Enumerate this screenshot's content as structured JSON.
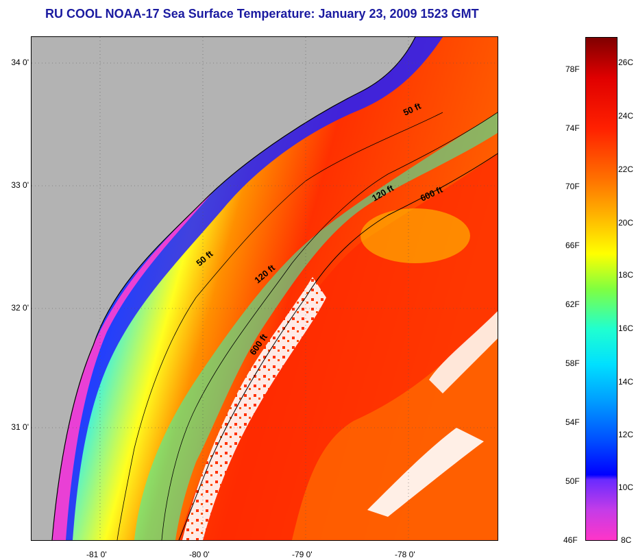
{
  "title": "RU COOL  NOAA-17  Sea Surface Temperature:  January 23, 2009 1523 GMT",
  "map": {
    "lat_ticks": [
      "34 0'",
      "33 0'",
      "32 0'",
      "31 0'"
    ],
    "lon_ticks": [
      "-81 0'",
      "-80 0'",
      "-79 0'",
      "-78 0'"
    ],
    "contour_labels": [
      "50 ft",
      "120 ft",
      "600 ft",
      "50 ft",
      "120 ft",
      "600 ft"
    ]
  },
  "colorbar": {
    "fahrenheit": [
      "78F",
      "74F",
      "70F",
      "66F",
      "62F",
      "58F",
      "54F",
      "50F",
      "46F"
    ],
    "celsius": [
      "26C",
      "24C",
      "22C",
      "20C",
      "18C",
      "16C",
      "14C",
      "12C",
      "10C",
      "8C"
    ]
  },
  "colors": {
    "land": "#b3b3b3",
    "cloud": "#ffffff",
    "title": "#1a1aa0"
  }
}
